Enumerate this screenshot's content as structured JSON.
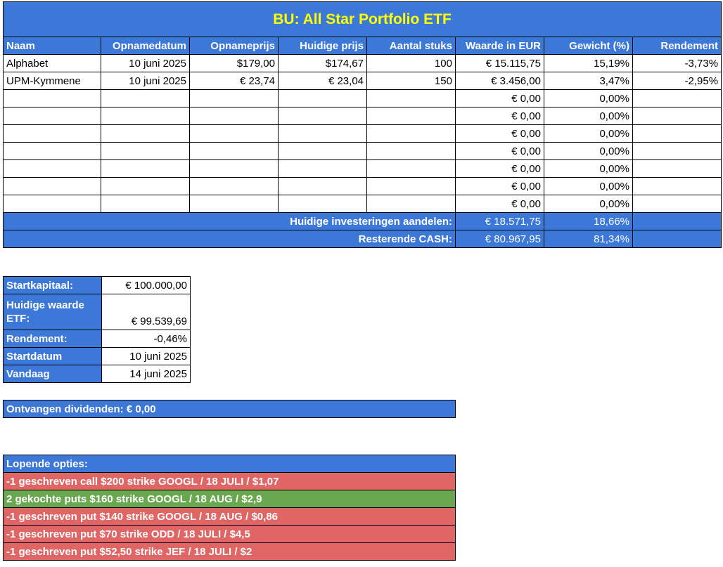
{
  "title": "BU: All Star Portfolio ETF",
  "headers": [
    "Naam",
    "Opnamedatum",
    "Opnameprijs",
    "Huidige prijs",
    "Aantal stuks",
    "Waarde in EUR",
    "Gewicht (%)",
    "Rendement"
  ],
  "rows": [
    [
      "Alphabet",
      "10 juni 2025",
      "$179,00",
      "$174,67",
      "100",
      "€ 15.115,75",
      "15,19%",
      "-3,73%"
    ],
    [
      "UPM-Kymmene",
      "10 juni 2025",
      "€ 23,74",
      "€ 23,04",
      "150",
      "€ 3.456,00",
      "3,47%",
      "-2,95%"
    ],
    [
      "",
      "",
      "",
      "",
      "",
      "€ 0,00",
      "0,00%",
      ""
    ],
    [
      "",
      "",
      "",
      "",
      "",
      "€ 0,00",
      "0,00%",
      ""
    ],
    [
      "",
      "",
      "",
      "",
      "",
      "€ 0,00",
      "0,00%",
      ""
    ],
    [
      "",
      "",
      "",
      "",
      "",
      "€ 0,00",
      "0,00%",
      ""
    ],
    [
      "",
      "",
      "",
      "",
      "",
      "€ 0,00",
      "0,00%",
      ""
    ],
    [
      "",
      "",
      "",
      "",
      "",
      "€ 0,00",
      "0,00%",
      ""
    ],
    [
      "",
      "",
      "",
      "",
      "",
      "€ 0,00",
      "0,00%",
      ""
    ]
  ],
  "totals": {
    "investments_label": "Huidige investeringen aandelen:",
    "investments_value": "€ 18.571,75",
    "investments_pct": "18,66%",
    "cash_label": "Resterende CASH:",
    "cash_value": "€ 80.967,95",
    "cash_pct": "81,34%"
  },
  "summary": [
    {
      "label": "Startkapitaal:",
      "value": "€ 100.000,00"
    },
    {
      "label": "Huidige waarde ETF:",
      "value": "€ 99.539,69"
    },
    {
      "label": "Rendement:",
      "value": "-0,46%"
    },
    {
      "label": "Startdatum",
      "value": "10 juni 2025"
    },
    {
      "label": "Vandaag",
      "value": "14 juni 2025"
    }
  ],
  "dividends": "Ontvangen dividenden: € 0,00",
  "options": {
    "header": "Lopende opties:",
    "items": [
      {
        "text": "-1 geschreven call $200 strike GOOGL / 18 JULI / $1,07",
        "color": "#e06666"
      },
      {
        "text": "2 gekochte puts $160 strike GOOGL / 18 AUG / $2,9",
        "color": "#6aa84f"
      },
      {
        "text": "-1 geschreven put $140 strike GOOGL / 18 AUG / $0,86",
        "color": "#e06666"
      },
      {
        "text": "-1 geschreven put $70 strike ODD / 18 JULI / $4,5",
        "color": "#e06666"
      },
      {
        "text": "-1 geschreven put $52,50 strike JEF / 18 JULI / $2",
        "color": "#e06666"
      }
    ]
  }
}
